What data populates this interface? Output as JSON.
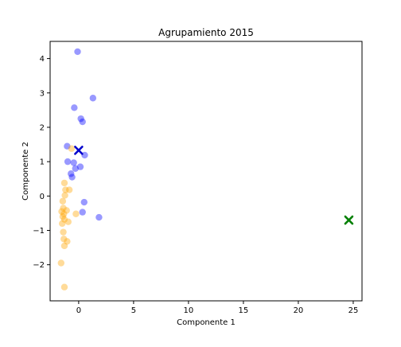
{
  "figure": {
    "title": "Agrupamiento 2015"
  },
  "chart_data": {
    "type": "scatter",
    "title": "Agrupamiento 2015",
    "xlabel": "Componente 1",
    "ylabel": "Componente 2",
    "xlim": [
      -2.6,
      25.8
    ],
    "ylim": [
      -3.05,
      4.5
    ],
    "xticks": [
      0,
      5,
      10,
      15,
      20,
      25
    ],
    "yticks": [
      -2,
      -1,
      0,
      1,
      2,
      3,
      4
    ],
    "grid": false,
    "legend": "none",
    "series": [
      {
        "color": "#0000ff",
        "marker": "circle",
        "points": [
          [
            -0.1,
            4.2
          ],
          [
            1.3,
            2.85
          ],
          [
            -0.4,
            2.57
          ],
          [
            0.2,
            2.25
          ],
          [
            0.35,
            2.16
          ],
          [
            -1.05,
            1.45
          ],
          [
            0.55,
            1.19
          ],
          [
            -1.0,
            1.0
          ],
          [
            -0.45,
            0.97
          ],
          [
            0.15,
            0.85
          ],
          [
            -0.3,
            0.8
          ],
          [
            -0.7,
            0.65
          ],
          [
            -0.6,
            0.55
          ],
          [
            0.5,
            -0.18
          ],
          [
            1.85,
            -0.62
          ],
          [
            0.35,
            -0.47
          ]
        ]
      },
      {
        "color": "#ffa500",
        "marker": "circle",
        "points": [
          [
            -0.65,
            1.38
          ],
          [
            -1.3,
            0.38
          ],
          [
            -1.2,
            0.18
          ],
          [
            -0.85,
            0.18
          ],
          [
            -1.25,
            0.02
          ],
          [
            -1.45,
            -0.15
          ],
          [
            -1.4,
            -0.35
          ],
          [
            -1.55,
            -0.45
          ],
          [
            -1.35,
            -0.52
          ],
          [
            -1.1,
            -0.42
          ],
          [
            -1.45,
            -0.6
          ],
          [
            -1.3,
            -0.68
          ],
          [
            -1.5,
            -0.8
          ],
          [
            -0.95,
            -0.75
          ],
          [
            -0.25,
            -0.52
          ],
          [
            -1.4,
            -1.05
          ],
          [
            -1.35,
            -1.25
          ],
          [
            -1.05,
            -1.32
          ],
          [
            -1.3,
            -1.45
          ],
          [
            -1.6,
            -1.95
          ],
          [
            -1.3,
            -2.65
          ]
        ]
      }
    ],
    "centroids": [
      {
        "x": 0.0,
        "y": 1.33,
        "color": "#0000cc",
        "marker": "x"
      },
      {
        "x": 24.6,
        "y": -0.7,
        "color": "#008000",
        "marker": "x"
      }
    ]
  }
}
